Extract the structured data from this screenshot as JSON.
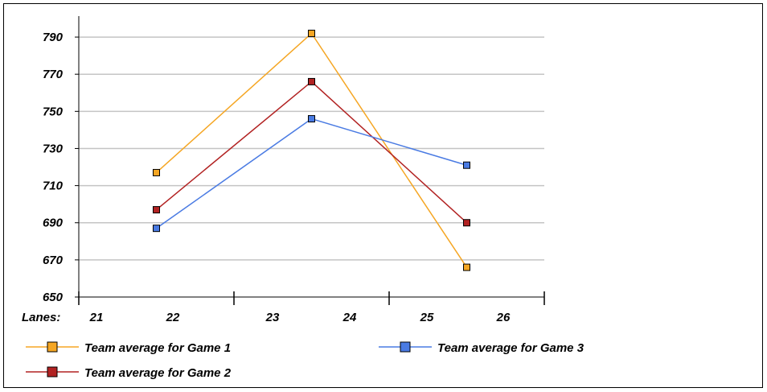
{
  "chart_data": {
    "type": "line",
    "x_label": "Lanes:",
    "x_tick_labels": [
      "21",
      "22",
      "23",
      "24",
      "25",
      "26"
    ],
    "categories": [
      "21-22",
      "23-24",
      "25-26"
    ],
    "ylim": [
      650,
      800
    ],
    "y_ticks": [
      650,
      670,
      690,
      710,
      730,
      750,
      770,
      790
    ],
    "grid": true,
    "legend_position": "bottom",
    "series": [
      {
        "name": "Team average for Game 1",
        "color": "#F5A623",
        "values": [
          717,
          792,
          666
        ]
      },
      {
        "name": "Team average for Game 2",
        "color": "#B22222",
        "values": [
          697,
          766,
          690
        ]
      },
      {
        "name": "Team average for Game 3",
        "color": "#4A7BE3",
        "values": [
          687,
          746,
          721
        ]
      }
    ]
  }
}
